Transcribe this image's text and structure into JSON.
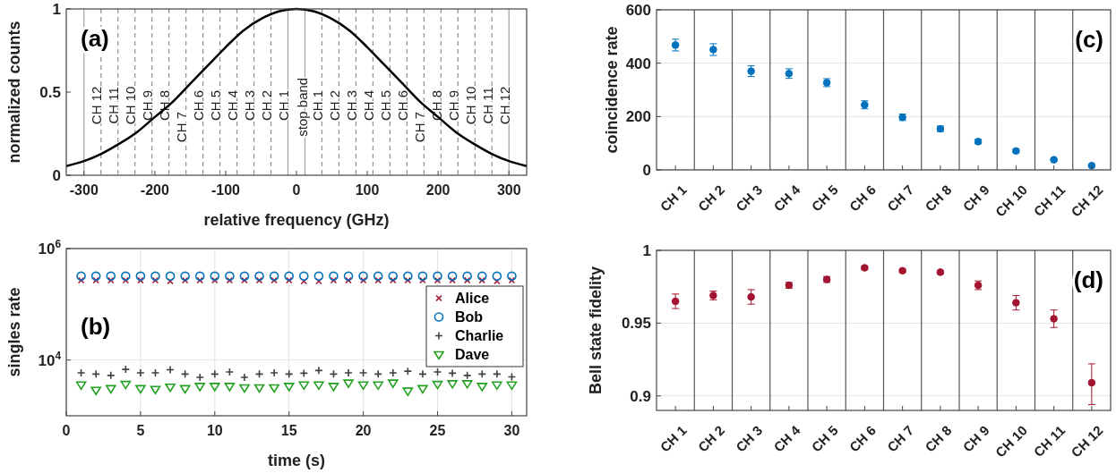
{
  "chart_data": [
    {
      "type": "line",
      "xlabel": "relative frequency (GHz)",
      "ylabel": "normalized counts",
      "xlim": [
        -325,
        325
      ],
      "ylim": [
        0,
        1
      ],
      "xticks": [
        -300,
        -200,
        -100,
        0,
        100,
        200,
        300
      ],
      "yticks": [
        0,
        0.5,
        1
      ],
      "series": [
        {
          "color": "#000000",
          "x": [
            -325,
            -300,
            -275,
            -250,
            -225,
            -200,
            -175,
            -150,
            -125,
            -100,
            -75,
            -50,
            -25,
            0,
            25,
            50,
            75,
            100,
            125,
            150,
            175,
            200,
            225,
            250,
            275,
            300,
            325
          ],
          "values": [
            0.055,
            0.085,
            0.13,
            0.19,
            0.26,
            0.35,
            0.44,
            0.55,
            0.66,
            0.77,
            0.87,
            0.94,
            0.985,
            1,
            0.985,
            0.94,
            0.87,
            0.77,
            0.66,
            0.55,
            0.44,
            0.35,
            0.26,
            0.19,
            0.13,
            0.085,
            0.055
          ]
        }
      ],
      "ref_lines": [
        {
          "axis": "x",
          "value": -300,
          "line_style": "solid",
          "color": "#a0a0a0"
        },
        {
          "axis": "x",
          "value": -276,
          "line_style": "dashed",
          "color": "#909090"
        },
        {
          "axis": "x",
          "value": -252,
          "line_style": "dashed",
          "color": "#909090"
        },
        {
          "axis": "x",
          "value": -228,
          "line_style": "dashed",
          "color": "#909090"
        },
        {
          "axis": "x",
          "value": -204,
          "line_style": "dashed",
          "color": "#909090"
        },
        {
          "axis": "x",
          "value": -180,
          "line_style": "dashed",
          "color": "#909090"
        },
        {
          "axis": "x",
          "value": -156,
          "line_style": "dashed",
          "color": "#909090"
        },
        {
          "axis": "x",
          "value": -132,
          "line_style": "dashed",
          "color": "#909090"
        },
        {
          "axis": "x",
          "value": -108,
          "line_style": "dashed",
          "color": "#909090"
        },
        {
          "axis": "x",
          "value": -84,
          "line_style": "dashed",
          "color": "#909090"
        },
        {
          "axis": "x",
          "value": -60,
          "line_style": "dashed",
          "color": "#909090"
        },
        {
          "axis": "x",
          "value": -36,
          "line_style": "dashed",
          "color": "#909090"
        },
        {
          "axis": "x",
          "value": -12,
          "line_style": "solid",
          "color": "#a0a0a0"
        },
        {
          "axis": "x",
          "value": 12,
          "line_style": "solid",
          "color": "#a0a0a0"
        },
        {
          "axis": "x",
          "value": 36,
          "line_style": "dashed",
          "color": "#909090"
        },
        {
          "axis": "x",
          "value": 60,
          "line_style": "dashed",
          "color": "#909090"
        },
        {
          "axis": "x",
          "value": 84,
          "line_style": "dashed",
          "color": "#909090"
        },
        {
          "axis": "x",
          "value": 108,
          "line_style": "dashed",
          "color": "#909090"
        },
        {
          "axis": "x",
          "value": 132,
          "line_style": "dashed",
          "color": "#909090"
        },
        {
          "axis": "x",
          "value": 156,
          "line_style": "dashed",
          "color": "#909090"
        },
        {
          "axis": "x",
          "value": 180,
          "line_style": "dashed",
          "color": "#909090"
        },
        {
          "axis": "x",
          "value": 204,
          "line_style": "dashed",
          "color": "#909090"
        },
        {
          "axis": "x",
          "value": 228,
          "line_style": "dashed",
          "color": "#909090"
        },
        {
          "axis": "x",
          "value": 252,
          "line_style": "dashed",
          "color": "#909090"
        },
        {
          "axis": "x",
          "value": 276,
          "line_style": "dashed",
          "color": "#909090"
        },
        {
          "axis": "x",
          "value": 300,
          "line_style": "solid",
          "color": "#a0a0a0"
        }
      ],
      "annotations": [
        "(a)",
        {
          "text": "CH 12",
          "x": -282,
          "y": 0.42
        },
        {
          "text": "CH 11",
          "x": -258,
          "y": 0.42
        },
        {
          "text": "CH 10",
          "x": -234,
          "y": 0.42
        },
        {
          "text": "CH 9",
          "x": -210,
          "y": 0.42
        },
        {
          "text": "CH 8",
          "x": -186,
          "y": 0.42
        },
        {
          "text": "CH 7",
          "x": -162,
          "y": 0.29
        },
        {
          "text": "CH 6",
          "x": -138,
          "y": 0.42
        },
        {
          "text": "CH 5",
          "x": -114,
          "y": 0.42
        },
        {
          "text": "CH 4",
          "x": -90,
          "y": 0.42
        },
        {
          "text": "CH 3",
          "x": -66,
          "y": 0.42
        },
        {
          "text": "CH 2",
          "x": -42,
          "y": 0.42
        },
        {
          "text": "CH 1",
          "x": -18,
          "y": 0.42
        },
        {
          "text": "stop band",
          "x": 8,
          "y": 0.41
        },
        {
          "text": "CH 1",
          "x": 30,
          "y": 0.42
        },
        {
          "text": "CH 2",
          "x": 54,
          "y": 0.42
        },
        {
          "text": "CH 3",
          "x": 78,
          "y": 0.42
        },
        {
          "text": "CH 4",
          "x": 102,
          "y": 0.42
        },
        {
          "text": "CH 5",
          "x": 126,
          "y": 0.42
        },
        {
          "text": "CH 6",
          "x": 150,
          "y": 0.42
        },
        {
          "text": "CH 7",
          "x": 174,
          "y": 0.29
        },
        {
          "text": "CH 8",
          "x": 198,
          "y": 0.42
        },
        {
          "text": "CH 9",
          "x": 222,
          "y": 0.42
        },
        {
          "text": "CH 10",
          "x": 246,
          "y": 0.42
        },
        {
          "text": "CH 11",
          "x": 270,
          "y": 0.42
        },
        {
          "text": "CH 12",
          "x": 294,
          "y": 0.42
        }
      ]
    },
    {
      "type": "scatter",
      "xlabel": "time (s)",
      "ylabel": "singles rate",
      "log": "y",
      "annotations": [
        "(b)"
      ],
      "grid": true,
      "legend": "right",
      "xlim": [
        0,
        31
      ],
      "ylim": [
        1000,
        1000000
      ],
      "xticks": [
        0,
        5,
        10,
        15,
        20,
        25,
        30
      ],
      "yticks": [
        {
          "value": 10000,
          "label": "10$^{4}$"
        },
        {
          "value": 1000000,
          "label": "10$^{6}$"
        }
      ],
      "x": [
        1,
        2,
        3,
        4,
        5,
        6,
        7,
        8,
        9,
        10,
        11,
        12,
        13,
        14,
        15,
        16,
        17,
        18,
        19,
        20,
        21,
        22,
        23,
        24,
        25,
        26,
        27,
        28,
        29,
        30
      ],
      "series": [
        {
          "name": "Alice",
          "color": "#a2142f",
          "marker": "cross",
          "values": [
            270000,
            270000,
            270000,
            270000,
            270000,
            270000,
            260000,
            270000,
            270000,
            270000,
            270000,
            270000,
            270000,
            270000,
            270000,
            260000,
            260000,
            270000,
            270000,
            270000,
            270000,
            270000,
            270000,
            270000,
            270000,
            270000,
            270000,
            270000,
            260000,
            270000
          ]
        },
        {
          "name": "Bob",
          "color": "#0072bd",
          "marker": "circle",
          "values": [
            320000,
            320000,
            320000,
            320000,
            320000,
            320000,
            320000,
            320000,
            320000,
            320000,
            320000,
            320000,
            320000,
            320000,
            320000,
            320000,
            320000,
            320000,
            320000,
            320000,
            320000,
            320000,
            320000,
            320000,
            320000,
            320000,
            320000,
            320000,
            320000,
            320000
          ]
        },
        {
          "name": "Charlie",
          "color": "#404040",
          "marker": "plus",
          "values": [
            5900,
            5600,
            5300,
            6800,
            5900,
            5900,
            6700,
            5600,
            4900,
            5600,
            6100,
            4900,
            5600,
            5900,
            5600,
            5800,
            6500,
            5600,
            5900,
            5900,
            5600,
            5900,
            6300,
            5600,
            6100,
            5800,
            5300,
            5600,
            5600,
            5000
          ]
        },
        {
          "name": "Dave",
          "color": "#22a020",
          "marker": "triangle",
          "values": [
            3600,
            2900,
            3100,
            3700,
            3100,
            3000,
            3300,
            3100,
            3400,
            3400,
            3400,
            3200,
            3200,
            3200,
            3400,
            3600,
            3600,
            3400,
            3900,
            3600,
            3600,
            3900,
            2800,
            3100,
            3700,
            3800,
            3800,
            3400,
            3600,
            3600
          ]
        }
      ]
    },
    {
      "type": "scatter",
      "ylabel": "coincidence rate",
      "grid": true,
      "marker": "circle",
      "color": "#0072bd",
      "ylim": [
        0,
        600
      ],
      "yticks": [
        0,
        200,
        400,
        600
      ],
      "categories": [
        "CH 1",
        "CH 2",
        "CH 3",
        "CH 4",
        "CH 5",
        "CH 6",
        "CH 7",
        "CH 8",
        "CH 9",
        "CH 10",
        "CH 11",
        "CH 12"
      ],
      "values": [
        468,
        451,
        370,
        361,
        327,
        244,
        197,
        154,
        106,
        71,
        38,
        16
      ],
      "errors": [
        22,
        22,
        20,
        18,
        15,
        15,
        12,
        10,
        8,
        6,
        4,
        3
      ],
      "annotations": [
        "(c)"
      ]
    },
    {
      "type": "scatter",
      "ylabel": "Bell state fidelity",
      "grid": true,
      "marker": "circle",
      "color": "#a2142f",
      "ylim": [
        0.89,
        1
      ],
      "yticks": [
        0.9,
        0.95,
        1
      ],
      "categories": [
        "CH 1",
        "CH 2",
        "CH 3",
        "CH 4",
        "CH 5",
        "CH 6",
        "CH 7",
        "CH 8",
        "CH 9",
        "CH 10",
        "CH 11",
        "CH 12"
      ],
      "values": [
        0.965,
        0.969,
        0.968,
        0.976,
        0.98,
        0.988,
        0.986,
        0.985,
        0.976,
        0.964,
        0.953,
        0.909
      ],
      "errors": [
        0.005,
        0.003,
        0.005,
        0.002,
        0.002,
        0.001,
        0.001,
        0.001,
        0.003,
        0.005,
        0.006,
        [
          0.894,
          0.922
        ]
      ],
      "annotations": [
        "(d)"
      ]
    }
  ]
}
